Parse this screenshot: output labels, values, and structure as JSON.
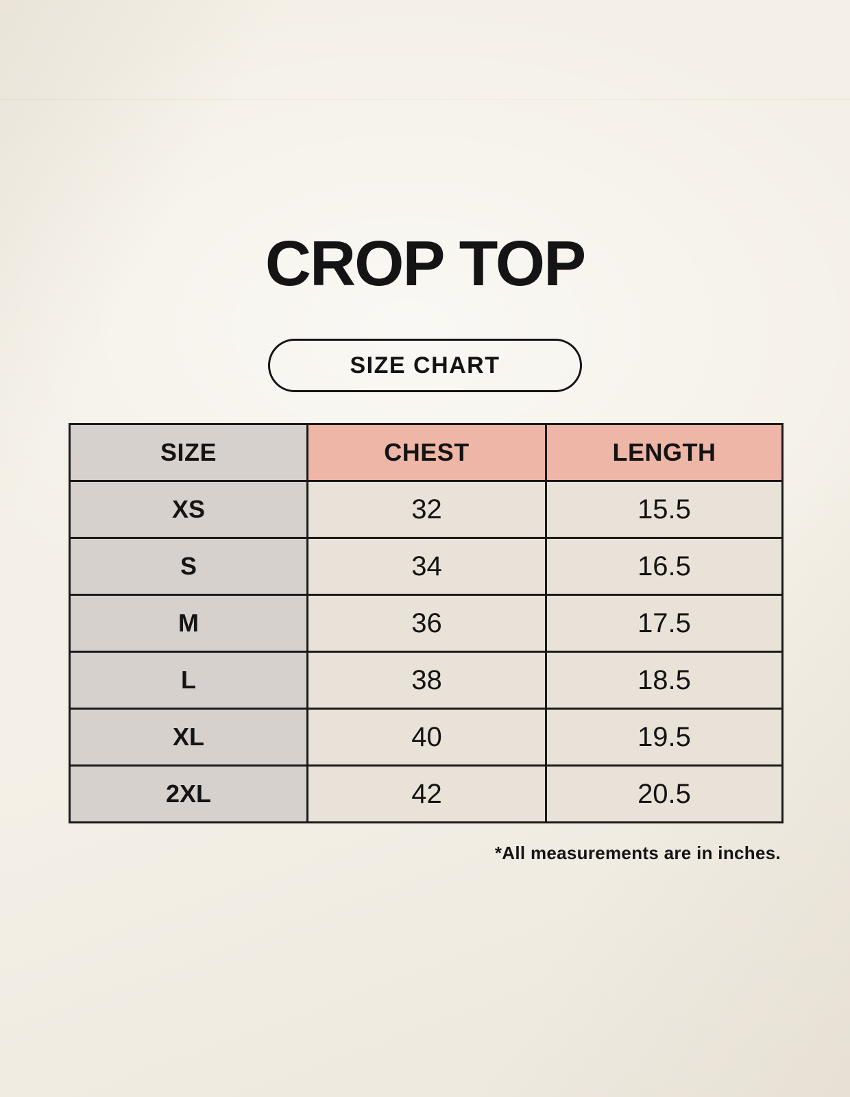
{
  "page": {
    "title": "CROP TOP",
    "badge_label": "SIZE CHART",
    "footnote": "*All measurements are in inches."
  },
  "colors": {
    "background": "#f4f0e7",
    "header_accent": "#eeb6a6",
    "size_column_bg": "#d7d1cd",
    "value_cell_bg": "#e9e2d8",
    "border": "#1a1a1a",
    "text": "#141414"
  },
  "chart_data": {
    "type": "table",
    "title": "CROP TOP",
    "subtitle": "SIZE CHART",
    "units_note": "*All measurements are in inches.",
    "columns": [
      "SIZE",
      "CHEST",
      "LENGTH"
    ],
    "rows": [
      {
        "size": "XS",
        "chest": "32",
        "length": "15.5"
      },
      {
        "size": "S",
        "chest": "34",
        "length": "16.5"
      },
      {
        "size": "M",
        "chest": "36",
        "length": "17.5"
      },
      {
        "size": "L",
        "chest": "38",
        "length": "18.5"
      },
      {
        "size": "XL",
        "chest": "40",
        "length": "19.5"
      },
      {
        "size": "2XL",
        "chest": "42",
        "length": "20.5"
      }
    ]
  }
}
